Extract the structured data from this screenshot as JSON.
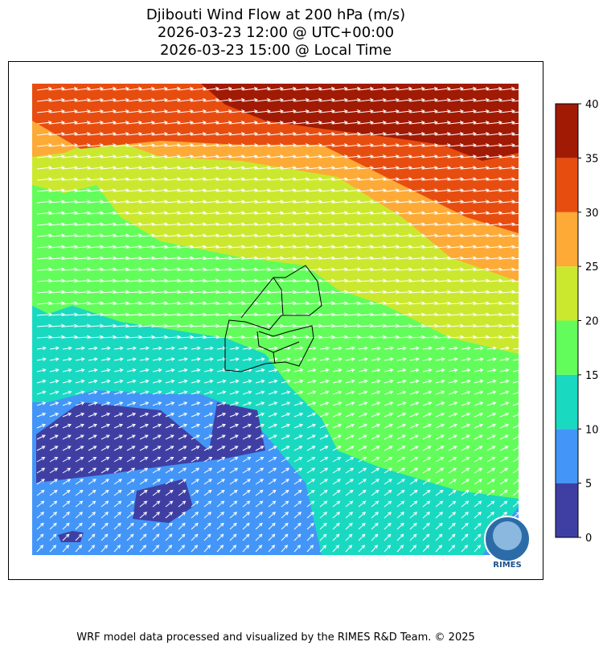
{
  "title": [
    "Djibouti Wind Flow at 200 hPa (m/s)",
    "2026-03-23 12:00 @ UTC+00:00",
    "2026-03-23 15:00 @ Local Time"
  ],
  "colorbar": {
    "ticks": [
      0,
      5,
      10,
      15,
      20,
      25,
      30,
      35,
      40
    ],
    "colors": [
      "#3f3fa3",
      "#4396f7",
      "#1ad9c1",
      "#63fd5b",
      "#cbe82f",
      "#fdaa37",
      "#e84d10",
      "#a11a04"
    ]
  },
  "logo": "RIMES",
  "footer": "WRF model data processed and visualized by the RIMES R&D Team. © 2025"
}
